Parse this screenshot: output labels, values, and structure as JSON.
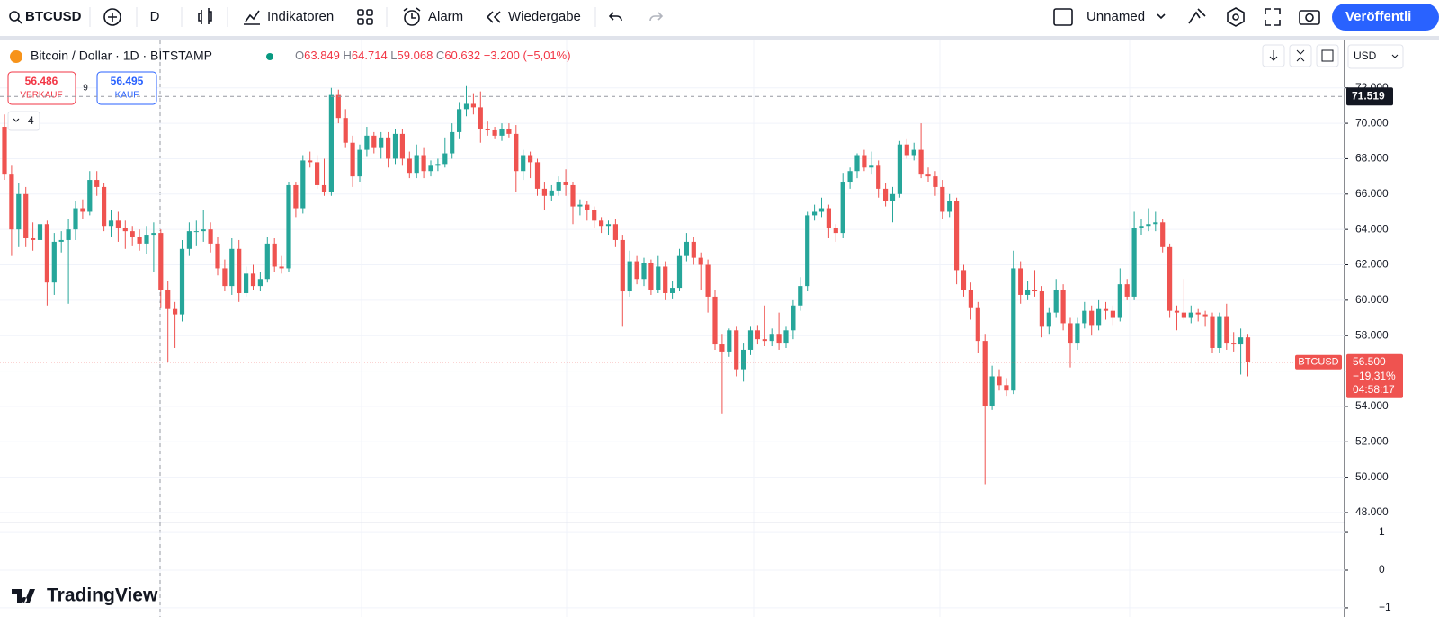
{
  "toolbar": {
    "symbol": "BTCUSD",
    "interval": "D",
    "indicators": "Indikatoren",
    "alert": "Alarm",
    "replay": "Wiedergabe",
    "layout_name": "Unnamed",
    "publish": "Veröffentli"
  },
  "legend": {
    "title": "Bitcoin / Dollar · 1D · BITSTAMP",
    "o_label": "O",
    "o": "63.849",
    "h_label": "H",
    "h": "64.714",
    "l_label": "L",
    "l": "59.068",
    "c_label": "C",
    "c": "60.632",
    "change": "−3.200 (−5,01%)"
  },
  "trade": {
    "sell_price": "56.486",
    "sell_label": "VERKAUF",
    "spread": "9",
    "buy_price": "56.495",
    "buy_label": "KAUF"
  },
  "indicator_count": "4",
  "currency": "USD",
  "logo": "TradingView",
  "chart_data": {
    "type": "candlestick",
    "up_color": "#26a69a",
    "down_color": "#ef5350",
    "grid": true,
    "ylim": [
      47440,
      74680
    ],
    "yticks": [
      {
        "value": 48000,
        "label": "48.000"
      },
      {
        "value": 50000,
        "label": "50.000"
      },
      {
        "value": 52000,
        "label": "52.000"
      },
      {
        "value": 54000,
        "label": "54.000"
      },
      {
        "value": 56000,
        "label": "56.000"
      },
      {
        "value": 58000,
        "label": "58.000"
      },
      {
        "value": 60000,
        "label": "60.000"
      },
      {
        "value": 62000,
        "label": "62.000"
      },
      {
        "value": 64000,
        "label": "64.000"
      },
      {
        "value": 66000,
        "label": "66.000"
      },
      {
        "value": 68000,
        "label": "68.000"
      },
      {
        "value": 70000,
        "label": "70.000"
      },
      {
        "value": 72000,
        "label": "72.000"
      }
    ],
    "crosshair": {
      "value": 71519,
      "label": "71.519"
    },
    "last_price": {
      "value": 56500,
      "label": "56.500",
      "symbol": "BTCUSD",
      "change": "−19,31%",
      "countdown": "04:58:17"
    },
    "lower_pane": {
      "ylim": [
        -1.24,
        1.24
      ],
      "yticks": [
        1,
        0,
        {
          "value": -1,
          "label": "−1"
        }
      ]
    },
    "ohlc": [
      [
        69800,
        70500,
        66800,
        67100
      ],
      [
        67100,
        67600,
        62500,
        64000
      ],
      [
        64000,
        66600,
        63000,
        66000
      ],
      [
        66000,
        66400,
        63000,
        63500
      ],
      [
        63500,
        64400,
        62800,
        63400
      ],
      [
        63400,
        64700,
        62900,
        64300
      ],
      [
        64300,
        64500,
        59700,
        61000
      ],
      [
        61000,
        63800,
        60300,
        63300
      ],
      [
        63300,
        63900,
        62700,
        63400
      ],
      [
        63400,
        64600,
        59800,
        64000
      ],
      [
        64000,
        65600,
        63400,
        65200
      ],
      [
        65200,
        65700,
        64600,
        65000
      ],
      [
        65000,
        67300,
        64800,
        66800
      ],
      [
        66800,
        67300,
        65900,
        66400
      ],
      [
        66400,
        66600,
        63900,
        64200
      ],
      [
        64200,
        65100,
        63600,
        64500
      ],
      [
        64500,
        65000,
        63300,
        64100
      ],
      [
        64100,
        64500,
        62900,
        63900
      ],
      [
        63900,
        64200,
        63100,
        63600
      ],
      [
        63600,
        64000,
        62800,
        63200
      ],
      [
        63200,
        64200,
        62600,
        63700
      ],
      [
        63700,
        64400,
        61600,
        63800
      ],
      [
        63800,
        64000,
        59600,
        60600
      ],
      [
        60600,
        61100,
        56500,
        59500
      ],
      [
        59500,
        59900,
        57300,
        59200
      ],
      [
        59200,
        63400,
        58800,
        62900
      ],
      [
        62900,
        64400,
        62500,
        63900
      ],
      [
        63900,
        64500,
        63100,
        63900
      ],
      [
        63900,
        65100,
        63300,
        64000
      ],
      [
        64000,
        64400,
        62700,
        63200
      ],
      [
        63200,
        63600,
        61400,
        61800
      ],
      [
        61800,
        62300,
        60500,
        60800
      ],
      [
        60800,
        63500,
        60300,
        62900
      ],
      [
        62900,
        63400,
        59900,
        60400
      ],
      [
        60400,
        61900,
        60200,
        61500
      ],
      [
        61500,
        62000,
        60600,
        60800
      ],
      [
        60800,
        61600,
        60500,
        61200
      ],
      [
        61200,
        63600,
        61000,
        63200
      ],
      [
        63200,
        63500,
        61600,
        61900
      ],
      [
        61900,
        62500,
        61500,
        61800
      ],
      [
        61800,
        66700,
        61600,
        66500
      ],
      [
        66500,
        66700,
        64700,
        65200
      ],
      [
        65200,
        68200,
        64900,
        67900
      ],
      [
        67900,
        68400,
        67500,
        67800
      ],
      [
        67800,
        68200,
        66300,
        66500
      ],
      [
        66500,
        68000,
        65900,
        66100
      ],
      [
        66100,
        72000,
        65900,
        71600
      ],
      [
        71600,
        71900,
        70000,
        70300
      ],
      [
        70300,
        70800,
        68600,
        68900
      ],
      [
        68900,
        69300,
        66400,
        67000
      ],
      [
        67000,
        68800,
        66700,
        68500
      ],
      [
        68500,
        69800,
        68100,
        69300
      ],
      [
        69300,
        69500,
        68300,
        68600
      ],
      [
        68600,
        69500,
        68000,
        69200
      ],
      [
        69200,
        69500,
        67500,
        68000
      ],
      [
        68000,
        69700,
        67700,
        69400
      ],
      [
        69400,
        69700,
        67600,
        68000
      ],
      [
        68000,
        68400,
        66900,
        67200
      ],
      [
        67200,
        68800,
        66900,
        68200
      ],
      [
        68200,
        68600,
        66900,
        67300
      ],
      [
        67300,
        67900,
        67000,
        67600
      ],
      [
        67600,
        68000,
        67300,
        67700
      ],
      [
        67700,
        69200,
        67500,
        68300
      ],
      [
        68300,
        70000,
        68000,
        69500
      ],
      [
        69500,
        71200,
        69100,
        70800
      ],
      [
        70800,
        72100,
        70400,
        71100
      ],
      [
        71100,
        71700,
        70500,
        70900
      ],
      [
        70900,
        71800,
        68900,
        69700
      ],
      [
        69700,
        70100,
        69300,
        69600
      ],
      [
        69600,
        69800,
        69100,
        69300
      ],
      [
        69300,
        70000,
        69000,
        69700
      ],
      [
        69700,
        70000,
        69200,
        69400
      ],
      [
        69400,
        69900,
        66100,
        67300
      ],
      [
        67300,
        68500,
        66800,
        68200
      ],
      [
        68200,
        68400,
        66900,
        67800
      ],
      [
        67800,
        68000,
        65900,
        66300
      ],
      [
        66300,
        66700,
        65100,
        65900
      ],
      [
        65900,
        66500,
        65600,
        66200
      ],
      [
        66200,
        67000,
        65900,
        66700
      ],
      [
        66700,
        67400,
        65900,
        66500
      ],
      [
        66500,
        66700,
        64300,
        65300
      ],
      [
        65300,
        65700,
        64800,
        65400
      ],
      [
        65400,
        65600,
        64500,
        65100
      ],
      [
        65100,
        65300,
        64100,
        64500
      ],
      [
        64500,
        64700,
        63800,
        64200
      ],
      [
        64200,
        64500,
        63700,
        64300
      ],
      [
        64300,
        64600,
        63000,
        63400
      ],
      [
        63400,
        63700,
        58500,
        60500
      ],
      [
        60500,
        62800,
        60200,
        62200
      ],
      [
        62200,
        62500,
        60900,
        61200
      ],
      [
        61200,
        62400,
        60800,
        62100
      ],
      [
        62100,
        62300,
        60300,
        60600
      ],
      [
        60600,
        62500,
        60400,
        61900
      ],
      [
        61900,
        62200,
        60000,
        60400
      ],
      [
        60400,
        61100,
        60100,
        60700
      ],
      [
        60700,
        62900,
        60500,
        62500
      ],
      [
        62500,
        63800,
        62200,
        63300
      ],
      [
        63300,
        63600,
        62000,
        62400
      ],
      [
        62400,
        62700,
        60600,
        62000
      ],
      [
        62000,
        62300,
        59300,
        60200
      ],
      [
        60200,
        60600,
        57200,
        57500
      ],
      [
        57500,
        58100,
        53600,
        57100
      ],
      [
        57100,
        58400,
        56800,
        58300
      ],
      [
        58300,
        58500,
        55700,
        56100
      ],
      [
        56100,
        57600,
        55400,
        57200
      ],
      [
        57200,
        58500,
        56900,
        58300
      ],
      [
        58300,
        58600,
        57500,
        57800
      ],
      [
        57800,
        59700,
        57400,
        57700
      ],
      [
        57700,
        58400,
        57400,
        58100
      ],
      [
        58100,
        59300,
        57200,
        57600
      ],
      [
        57600,
        58500,
        57300,
        58300
      ],
      [
        58300,
        60000,
        57800,
        59700
      ],
      [
        59700,
        61300,
        59400,
        60800
      ],
      [
        60800,
        65000,
        60500,
        64800
      ],
      [
        64800,
        65400,
        64500,
        65000
      ],
      [
        65000,
        65800,
        64700,
        65200
      ],
      [
        65200,
        65400,
        63500,
        64100
      ],
      [
        64100,
        64300,
        63300,
        63800
      ],
      [
        63800,
        67200,
        63500,
        66700
      ],
      [
        66700,
        67500,
        66300,
        67300
      ],
      [
        67300,
        68300,
        66900,
        68200
      ],
      [
        68200,
        68500,
        67300,
        67500
      ],
      [
        67500,
        68400,
        67100,
        67600
      ],
      [
        67600,
        67900,
        65800,
        66300
      ],
      [
        66300,
        66600,
        65300,
        65600
      ],
      [
        65600,
        66400,
        64400,
        66000
      ],
      [
        66000,
        69000,
        65800,
        68800
      ],
      [
        68800,
        69100,
        68000,
        68200
      ],
      [
        68200,
        68900,
        67900,
        68500
      ],
      [
        68500,
        70000,
        66900,
        67100
      ],
      [
        67100,
        67500,
        66700,
        67000
      ],
      [
        67000,
        67300,
        65900,
        66400
      ],
      [
        66400,
        66800,
        64600,
        65000
      ],
      [
        65000,
        66000,
        64700,
        65600
      ],
      [
        65600,
        65800,
        60900,
        61700
      ],
      [
        61700,
        62000,
        60200,
        60600
      ],
      [
        60600,
        61000,
        58900,
        59600
      ],
      [
        59600,
        59900,
        57000,
        57700
      ],
      [
        57700,
        58100,
        49600,
        54000
      ],
      [
        54000,
        56300,
        53800,
        55700
      ],
      [
        55700,
        56100,
        54900,
        55200
      ],
      [
        55200,
        55600,
        54600,
        54900
      ],
      [
        54900,
        62800,
        54700,
        61800
      ],
      [
        61800,
        62200,
        59800,
        60300
      ],
      [
        60300,
        61100,
        60000,
        60600
      ],
      [
        60600,
        61700,
        60200,
        60500
      ],
      [
        60500,
        60800,
        57900,
        58500
      ],
      [
        58500,
        59600,
        58100,
        59300
      ],
      [
        59300,
        61200,
        59000,
        60600
      ],
      [
        60600,
        60900,
        58300,
        58700
      ],
      [
        58700,
        59000,
        56200,
        57600
      ],
      [
        57600,
        59000,
        57200,
        58700
      ],
      [
        58700,
        59900,
        58400,
        59400
      ],
      [
        59400,
        59700,
        58000,
        58600
      ],
      [
        58600,
        60000,
        58300,
        59500
      ],
      [
        59500,
        59900,
        58900,
        59400
      ],
      [
        59400,
        59700,
        58600,
        59000
      ],
      [
        59000,
        61800,
        58800,
        60900
      ],
      [
        60900,
        61200,
        60000,
        60200
      ],
      [
        60200,
        65000,
        60000,
        64100
      ],
      [
        64100,
        64600,
        63700,
        64200
      ],
      [
        64200,
        65200,
        63900,
        64300
      ],
      [
        64300,
        65000,
        63900,
        64400
      ],
      [
        64400,
        64600,
        62700,
        63000
      ],
      [
        63000,
        63200,
        59000,
        59400
      ],
      [
        59400,
        59700,
        58300,
        59300
      ],
      [
        59300,
        61200,
        58900,
        59000
      ],
      [
        59000,
        59700,
        58700,
        59300
      ],
      [
        59300,
        59500,
        58800,
        59200
      ],
      [
        59200,
        59400,
        58500,
        59100
      ],
      [
        59100,
        59300,
        57000,
        57300
      ],
      [
        57300,
        59300,
        57000,
        59100
      ],
      [
        59100,
        59800,
        57200,
        57600
      ],
      [
        57600,
        58200,
        57100,
        57500
      ],
      [
        57500,
        58400,
        55800,
        57900
      ],
      [
        57900,
        58100,
        55700,
        56500
      ]
    ]
  }
}
